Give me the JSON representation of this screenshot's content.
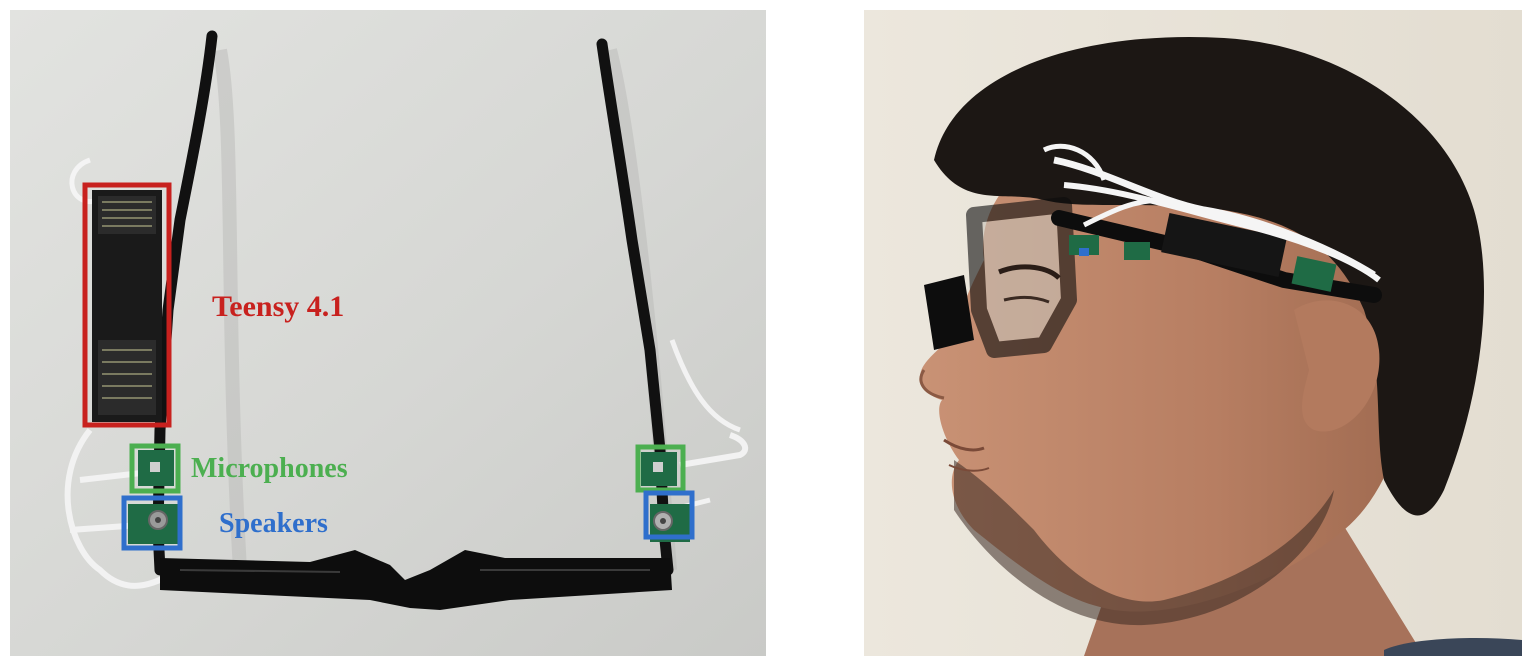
{
  "left_photo": {
    "labels": {
      "teensy": "Teensy 4.1",
      "microphones": "Microphones",
      "speakers": "Speakers"
    },
    "colors": {
      "teensy": "#c8211e",
      "microphones": "#4caf50",
      "speakers": "#2f6fcc"
    }
  },
  "right_photo": {}
}
